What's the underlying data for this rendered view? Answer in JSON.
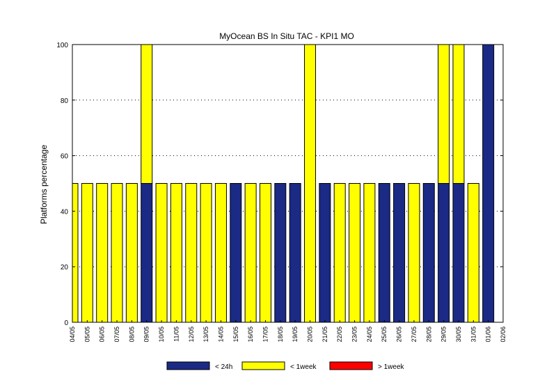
{
  "chart_data": {
    "type": "bar",
    "stacked": true,
    "title": "MyOcean  BS In Situ TAC - KPI1  MO",
    "xlabel": "",
    "ylabel": "Platforms percentage",
    "ylim": [
      0,
      100
    ],
    "yticks": [
      0,
      20,
      40,
      60,
      80,
      100
    ],
    "grid": "horizontal dotted",
    "legend_position": "bottom",
    "categories": [
      "04/05",
      "05/05",
      "06/05",
      "07/05",
      "08/05",
      "09/05",
      "10/05",
      "11/05",
      "12/05",
      "13/05",
      "14/05",
      "15/05",
      "16/05",
      "17/05",
      "18/05",
      "19/05",
      "20/05",
      "21/05",
      "22/05",
      "23/05",
      "24/05",
      "25/05",
      "26/05",
      "27/05",
      "28/05",
      "29/05",
      "30/05",
      "31/05",
      "01/06",
      "02/06"
    ],
    "series": [
      {
        "name": "< 24h",
        "color": "#1a2a85",
        "values": [
          0,
          0,
          0,
          0,
          0,
          50,
          0,
          0,
          0,
          0,
          0,
          50,
          0,
          0,
          50,
          50,
          0,
          50,
          0,
          0,
          0,
          50,
          50,
          0,
          50,
          50,
          50,
          0,
          100,
          0
        ]
      },
      {
        "name": "< 1week",
        "color": "#ffff00",
        "values": [
          50,
          50,
          50,
          50,
          50,
          50,
          50,
          50,
          50,
          50,
          50,
          0,
          50,
          50,
          0,
          0,
          100,
          0,
          50,
          50,
          50,
          0,
          0,
          50,
          0,
          50,
          50,
          50,
          0,
          0
        ]
      },
      {
        "name": "> 1week",
        "color": "#ff0000",
        "values": [
          0,
          0,
          0,
          0,
          0,
          0,
          0,
          0,
          0,
          0,
          0,
          0,
          0,
          0,
          0,
          0,
          0,
          0,
          0,
          0,
          0,
          0,
          0,
          0,
          0,
          0,
          0,
          0,
          0,
          0
        ]
      }
    ]
  }
}
